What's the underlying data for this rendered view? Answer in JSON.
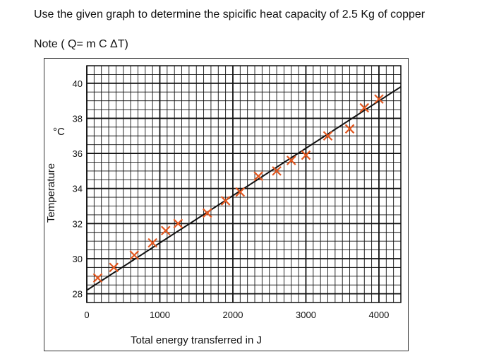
{
  "question": {
    "text": "Use the given graph to determine the spicific heat capacity of 2.5 Kg  of copper",
    "note": "Note ( Q= m C ΔT)"
  },
  "chart_data": {
    "type": "line",
    "xlabel": "Total energy transferred in J",
    "ylabel": "Temperature",
    "y_unit": "°C",
    "xlim": [
      0,
      4300
    ],
    "ylim": [
      27.5,
      41
    ],
    "x_ticks": [
      0,
      1000,
      2000,
      3000,
      4000
    ],
    "x_tick_labels": [
      "0",
      "1000",
      "2000",
      "3000",
      "4000"
    ],
    "y_ticks": [
      28,
      30,
      32,
      34,
      36,
      38,
      40
    ],
    "y_tick_labels": [
      "28",
      "30",
      "32",
      "34",
      "36",
      "38",
      "40"
    ],
    "grid": true,
    "line_color": "#111111",
    "marker_color": "#e2571f",
    "best_fit": {
      "x": [
        0,
        4300
      ],
      "y": [
        28.2,
        39.8
      ]
    },
    "series": [
      {
        "marker": "x",
        "x": [
          150,
          370,
          650,
          900,
          1080,
          1250,
          1650,
          1900,
          2100,
          2350,
          2600,
          2800,
          3000,
          3300,
          3600,
          3800,
          4000
        ],
        "y": [
          28.9,
          29.5,
          30.2,
          30.9,
          31.6,
          32.0,
          32.6,
          33.3,
          33.8,
          34.7,
          35.0,
          35.6,
          35.9,
          37.0,
          37.4,
          38.6,
          39.1
        ]
      }
    ]
  }
}
